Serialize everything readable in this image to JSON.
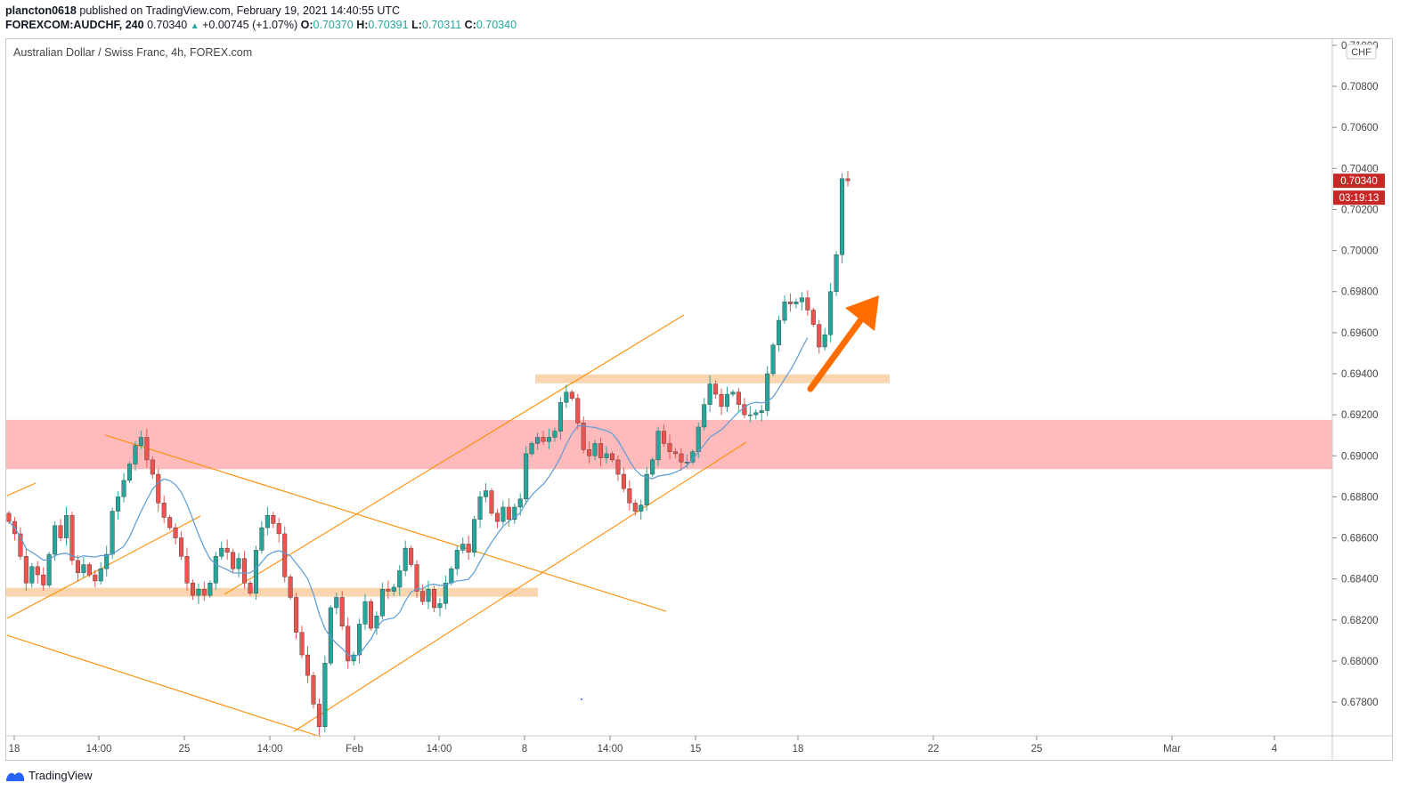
{
  "header": {
    "author": "plancton0618",
    "published_text": "published on TradingView.com, February 19, 2021 14:40:55 UTC",
    "symbol": "FOREXCOM:AUDCHF, 240",
    "last": "0.70340",
    "change": "+0.00745 (+1.07%)",
    "o_label": "O:",
    "o": "0.70370",
    "h_label": "H:",
    "h": "0.70391",
    "l_label": "L:",
    "l": "0.70311",
    "c_label": "C:",
    "c": "0.70340"
  },
  "footer": {
    "brand": "TradingView"
  },
  "chart_data": {
    "type": "candlestick",
    "title": "Australian Dollar / Swiss Franc, 4h, FOREX.com",
    "currency": "CHF",
    "y_axis": {
      "ticks": [
        "0.71000",
        "0.70800",
        "0.70600",
        "0.70400",
        "0.70200",
        "0.70000",
        "0.69800",
        "0.69600",
        "0.69400",
        "0.69200",
        "0.69000",
        "0.68800",
        "0.68600",
        "0.68400",
        "0.68200",
        "0.68000",
        "0.67800"
      ],
      "range": [
        0.6764,
        0.7103
      ]
    },
    "x_axis": {
      "labels": [
        "18",
        "14:00",
        "25",
        "14:00",
        "Feb",
        "14:00",
        "8",
        "14:00",
        "15",
        "18",
        "22",
        "25",
        "Mar",
        "4"
      ]
    },
    "last_price_label": "0.70340",
    "countdown_label": "03:19:13",
    "colors": {
      "up": "#26a69a",
      "down": "#ef5350",
      "ma": "#5b9bd5",
      "resistance_zone": "#ff9e9e",
      "support_zone": "#f7c58f",
      "trendline": "#ff8c00",
      "arrow": "#ff6d00",
      "price_tag": "#c62828"
    },
    "zones": [
      {
        "type": "resistance",
        "from": 0.68935,
        "to": 0.69175,
        "color": "#ff9e9e"
      },
      {
        "type": "support",
        "level": 0.68335,
        "color": "#f7c58f"
      },
      {
        "type": "support",
        "level": 0.69375,
        "color": "#f7c58f"
      }
    ],
    "close_series": [
      0.6868,
      0.6862,
      0.6851,
      0.6838,
      0.6846,
      0.6842,
      0.6837,
      0.6852,
      0.6866,
      0.686,
      0.6871,
      0.6849,
      0.6843,
      0.6847,
      0.6842,
      0.6839,
      0.6845,
      0.6852,
      0.6873,
      0.688,
      0.6888,
      0.6896,
      0.6905,
      0.6909,
      0.6898,
      0.6891,
      0.6877,
      0.687,
      0.6865,
      0.686,
      0.6851,
      0.6838,
      0.6832,
      0.6835,
      0.6832,
      0.6838,
      0.6851,
      0.6855,
      0.6853,
      0.6845,
      0.685,
      0.6838,
      0.6833,
      0.6854,
      0.6865,
      0.6871,
      0.6867,
      0.6862,
      0.6841,
      0.6831,
      0.6814,
      0.6803,
      0.6793,
      0.6779,
      0.6768,
      0.6799,
      0.6826,
      0.6831,
      0.6817,
      0.68,
      0.6803,
      0.6818,
      0.6829,
      0.6816,
      0.6822,
      0.6835,
      0.6834,
      0.6836,
      0.6844,
      0.6855,
      0.6847,
      0.6834,
      0.6829,
      0.6835,
      0.6826,
      0.6828,
      0.6838,
      0.6845,
      0.6854,
      0.6857,
      0.6853,
      0.6869,
      0.688,
      0.6883,
      0.6872,
      0.6868,
      0.6875,
      0.6869,
      0.6875,
      0.6879,
      0.6901,
      0.6906,
      0.6909,
      0.6907,
      0.6909,
      0.6912,
      0.6926,
      0.6931,
      0.6928,
      0.6916,
      0.6903,
      0.69,
      0.6906,
      0.6899,
      0.6901,
      0.6898,
      0.6891,
      0.6884,
      0.6877,
      0.6873,
      0.6876,
      0.6891,
      0.6898,
      0.6912,
      0.6906,
      0.6902,
      0.6901,
      0.6897,
      0.6897,
      0.6902,
      0.6914,
      0.6925,
      0.6935,
      0.693,
      0.6924,
      0.693,
      0.6931,
      0.6925,
      0.692,
      0.692,
      0.6921,
      0.6922,
      0.694,
      0.6954,
      0.6966,
      0.6975,
      0.6974,
      0.6975,
      0.6977,
      0.6971,
      0.6964,
      0.6953,
      0.6959,
      0.698,
      0.6998,
      0.7035,
      0.7034
    ]
  }
}
